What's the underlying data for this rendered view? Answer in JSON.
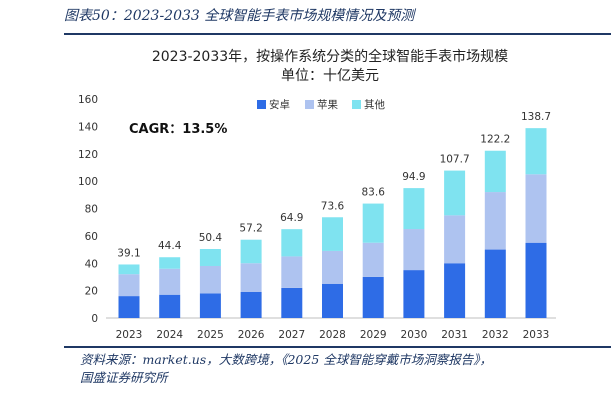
{
  "caption": "图表50：2023-2033 全球智能手表市场规模情况及预测",
  "source_lines": [
    "资料来源：market.us，大数跨境，《2025 全球智能穿戴市场洞察报告》，",
    "国盛证券研究所"
  ],
  "colors": {
    "android": "#2e6ce6",
    "apple": "#aec3f0",
    "other": "#7fe3f0",
    "caption": "#1f3864"
  },
  "chart_data": {
    "type": "bar",
    "stacked": true,
    "title_lines": [
      "2023-2033年，按操作系统分类的全球智能手表市场规模",
      "单位：十亿美元"
    ],
    "categories": [
      "2023",
      "2024",
      "2025",
      "2026",
      "2027",
      "2028",
      "2029",
      "2030",
      "2031",
      "2032",
      "2033"
    ],
    "series": [
      {
        "name": "安卓",
        "values": [
          16,
          17,
          18,
          19,
          22,
          25,
          30,
          35,
          40,
          50,
          55
        ]
      },
      {
        "name": "苹果",
        "values": [
          16,
          19,
          20,
          21,
          23,
          24,
          25,
          30,
          35,
          42,
          50
        ]
      },
      {
        "name": "其他",
        "values": [
          7.1,
          8.4,
          12.4,
          17.2,
          19.9,
          24.6,
          28.6,
          29.9,
          32.7,
          30.2,
          33.7
        ]
      }
    ],
    "totals": [
      39.1,
      44.4,
      50.4,
      57.2,
      64.9,
      73.6,
      83.6,
      94.9,
      107.7,
      122.2,
      138.7
    ],
    "annotation": "CAGR：13.5%",
    "ylim": [
      0,
      160
    ],
    "yticks": [
      0,
      20,
      40,
      60,
      80,
      100,
      120,
      140,
      160
    ],
    "legend_position": "top-center",
    "grid": false
  }
}
